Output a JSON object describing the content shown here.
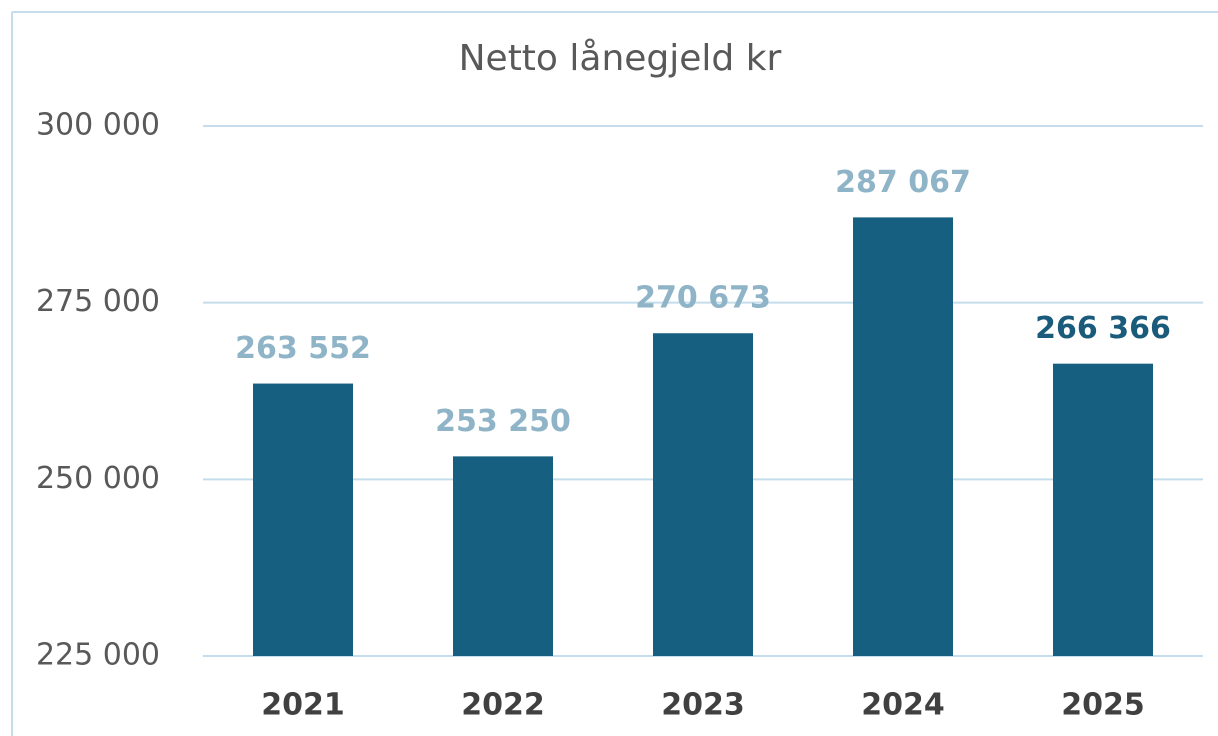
{
  "chart_data": {
    "type": "bar",
    "title": "Netto lånegjeld kr",
    "categories": [
      "2021",
      "2022",
      "2023",
      "2024",
      "2025"
    ],
    "values": [
      263552,
      253250,
      270673,
      287067,
      266366
    ],
    "value_labels": [
      "263 552",
      "253 250",
      "270 673",
      "287 067",
      "266 366"
    ],
    "value_label_colors": [
      "#8fb4c8",
      "#8fb4c8",
      "#8fb4c8",
      "#8fb4c8",
      "#1a5a7a"
    ],
    "color": "#175f80",
    "ylim": [
      225000,
      300000
    ],
    "yticks": [
      {
        "value": 225000,
        "label": "225 000"
      },
      {
        "value": 250000,
        "label": "250 000"
      },
      {
        "value": 275000,
        "label": "275 000"
      },
      {
        "value": 300000,
        "label": "300 000"
      }
    ],
    "grid": true
  }
}
